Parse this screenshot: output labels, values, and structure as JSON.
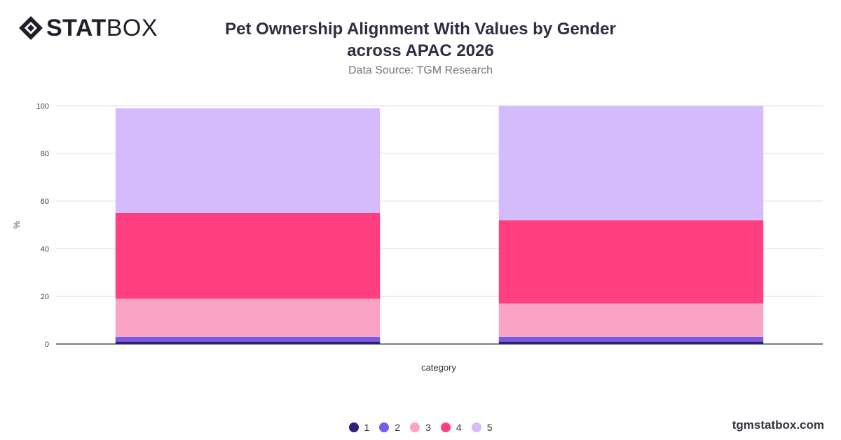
{
  "brand": {
    "stat": "STAT",
    "box": "BOX"
  },
  "title_line1": "Pet Ownership Alignment With Values by Gender",
  "title_line2": "across APAC 2026",
  "subtitle": "Data Source: TGM Research",
  "watermark": "tgmstatbox.com",
  "chart_data": {
    "type": "bar",
    "stacked": true,
    "categories": [
      "",
      ""
    ],
    "xlabel": "category",
    "ylabel": "%",
    "ylim": [
      0,
      100
    ],
    "yticks": [
      0,
      20,
      40,
      60,
      80,
      100
    ],
    "grid": true,
    "legend_position": "bottom",
    "series": [
      {
        "name": "1",
        "color": "#2e1f7a",
        "values": [
          1,
          1
        ]
      },
      {
        "name": "2",
        "color": "#7a5ce6",
        "values": [
          2,
          2
        ]
      },
      {
        "name": "3",
        "color": "#fba3c4",
        "values": [
          16,
          14
        ]
      },
      {
        "name": "4",
        "color": "#ff3f80",
        "values": [
          36,
          35
        ]
      },
      {
        "name": "5",
        "color": "#d4bbfb",
        "values": [
          44,
          48
        ]
      }
    ]
  }
}
